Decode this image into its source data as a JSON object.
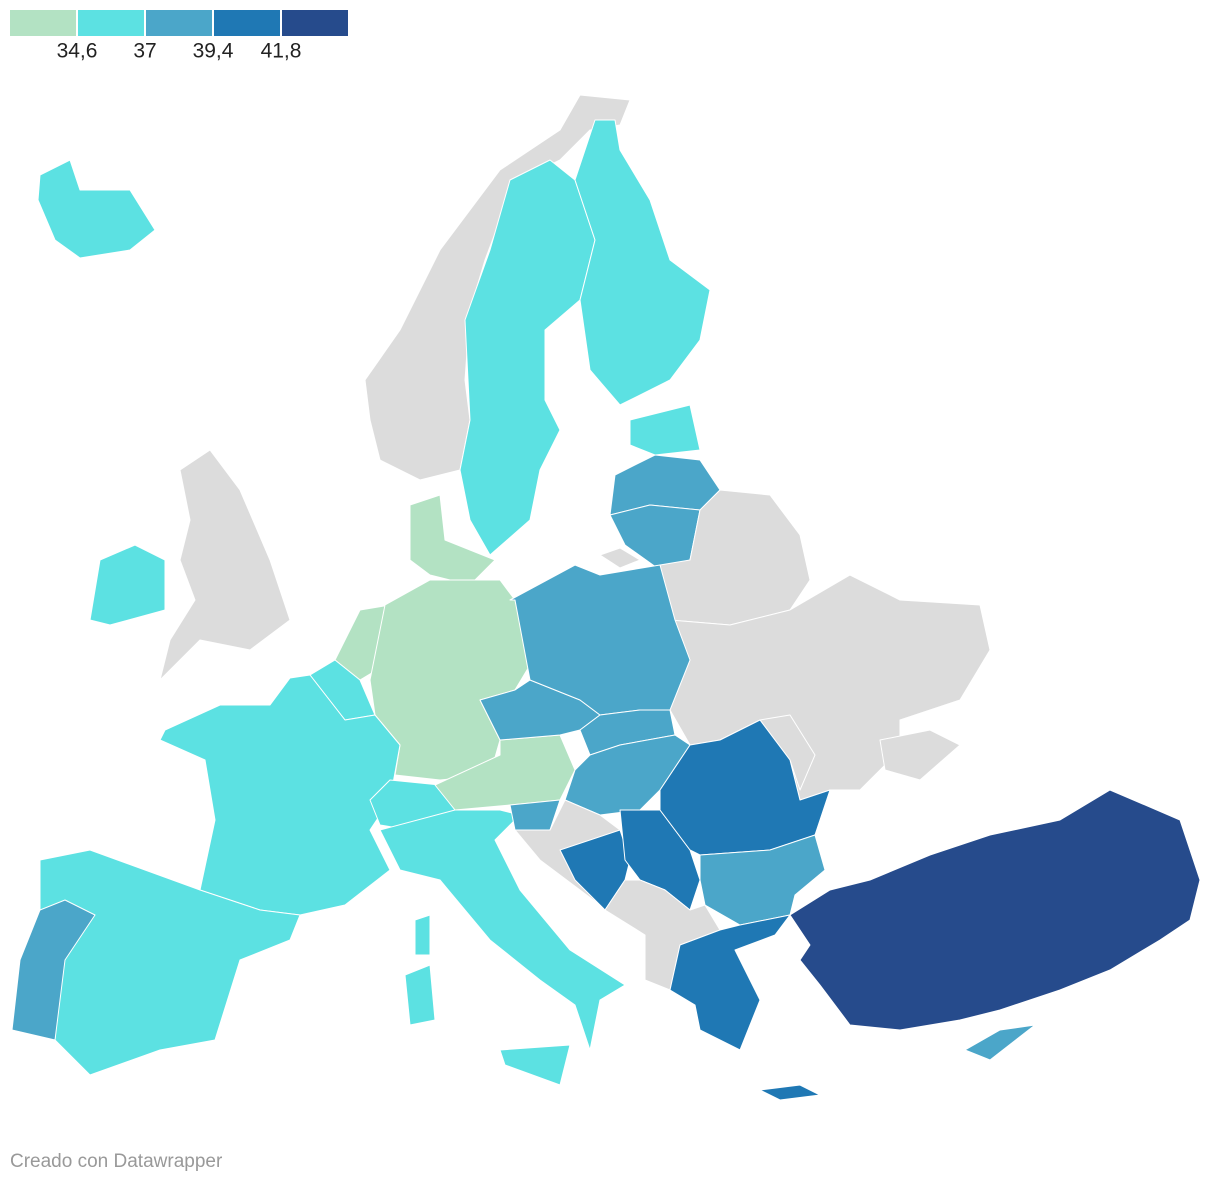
{
  "legend": {
    "colors": [
      "#b3e2c3",
      "#5ce1e2",
      "#4ba6c9",
      "#1f78b4",
      "#264b8c"
    ],
    "thresholds": [
      {
        "value": 34.6,
        "label": "34,6"
      },
      37,
      {
        "value": 39.4,
        "label": "39,4"
      },
      {
        "value": 41.8,
        "label": "41,8"
      }
    ]
  },
  "footer": "Creado con Datawrapper"
}
